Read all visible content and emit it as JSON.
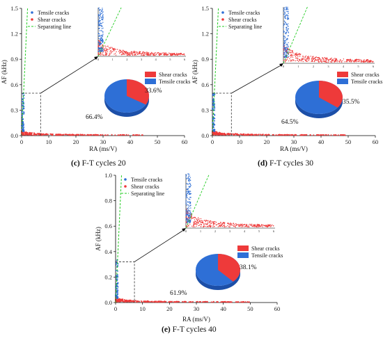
{
  "colors": {
    "tensile": "#2e6fd6",
    "shear": "#ee3a3a",
    "separating": "#22cc22"
  },
  "chart_data": [
    {
      "type": "scatter",
      "caption_letter": "(c)",
      "caption_text": " F-T cycles 20",
      "xlabel": "RA (ms/V)",
      "ylabel": "AF (kHz)",
      "xlim": [
        0,
        60
      ],
      "ylim": [
        0,
        1.5
      ],
      "xticks": [
        "0",
        "10",
        "20",
        "30",
        "40",
        "50",
        "60"
      ],
      "yticks": [
        "0.0",
        "0.3",
        "0.6",
        "0.9",
        "1.2",
        "1.5"
      ],
      "legend": [
        "Tensile cracks",
        "Shear cracks",
        "Separating line"
      ],
      "zoom_box": {
        "ra_max": 7,
        "af_max": 0.5
      },
      "inset_xticks": [
        "0",
        "1",
        "2",
        "3",
        "4",
        "5",
        "6"
      ],
      "pie": {
        "labels": [
          "Shear cracks",
          "Tensile cracks"
        ],
        "values": [
          33.6,
          66.4
        ],
        "labels_text": [
          "33.6%",
          "66.4%"
        ]
      }
    },
    {
      "type": "scatter",
      "caption_letter": "(d)",
      "caption_text": " F-T cycles 30",
      "xlabel": "RA (ms/V)",
      "ylabel": "AF (kHz)",
      "xlim": [
        0,
        60
      ],
      "ylim": [
        0,
        1.5
      ],
      "xticks": [
        "0",
        "10",
        "20",
        "30",
        "40",
        "50",
        "60"
      ],
      "yticks": [
        "0.0",
        "0.3",
        "0.6",
        "0.9",
        "1.2",
        "1.5"
      ],
      "legend": [
        "Tensile cracks",
        "Shear cracks",
        "Separating line"
      ],
      "zoom_box": {
        "ra_max": 7,
        "af_max": 0.5
      },
      "inset_xticks": [
        "0",
        "1",
        "2",
        "3",
        "4",
        "5",
        "6"
      ],
      "pie": {
        "labels": [
          "Shear cracks",
          "Tensile cracks"
        ],
        "values": [
          35.5,
          64.5
        ],
        "labels_text": [
          "35.5%",
          "64.5%"
        ]
      }
    },
    {
      "type": "scatter",
      "caption_letter": "(e)",
      "caption_text": " F-T cycles 40",
      "xlabel": "RA (ms/V)",
      "ylabel": "AF (kHz)",
      "xlim": [
        0,
        60
      ],
      "ylim": [
        0,
        1.0
      ],
      "xticks": [
        "0",
        "10",
        "20",
        "30",
        "40",
        "50",
        "60"
      ],
      "yticks": [
        "0.0",
        "0.2",
        "0.4",
        "0.6",
        "0.8",
        "1.0"
      ],
      "legend": [
        "Tensile cracks",
        "Shear cracks",
        "Separating line"
      ],
      "zoom_box": {
        "ra_max": 7,
        "af_max": 0.32
      },
      "inset_xticks": [
        "0",
        "1",
        "2",
        "3",
        "4",
        "5",
        "6"
      ],
      "pie": {
        "labels": [
          "Shear cracks",
          "Tensile cracks"
        ],
        "values": [
          38.1,
          61.9
        ],
        "labels_text": [
          "38.1%",
          "61.9%"
        ]
      }
    }
  ]
}
